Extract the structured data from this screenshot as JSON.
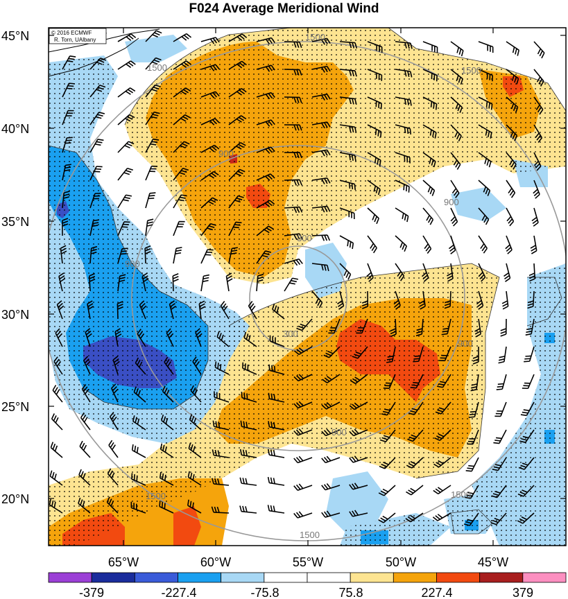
{
  "title": "F024 Average Meridional Wind",
  "credit": [
    "© 2016 ECMWF",
    "R. Torn, UAlbany"
  ],
  "axes": {
    "lat_labels": [
      "45°N",
      "40°N",
      "35°N",
      "30°N",
      "25°N",
      "20°N"
    ],
    "lon_labels": [
      "65°W",
      "60°W",
      "55°W",
      "50°W",
      "45°W"
    ]
  },
  "contour_labels": [
    "1500",
    "1500",
    "1500",
    "1500",
    "1500",
    "900",
    "900",
    "900",
    "900",
    "900",
    "300",
    "300",
    "1500"
  ],
  "colorbar": {
    "colors": [
      "#9b3fd6",
      "#1a2c9c",
      "#3a5bd9",
      "#1aa0f0",
      "#a8d8f5",
      "#ffffff",
      "#ffffff",
      "#fde491",
      "#f5a40c",
      "#f24a10",
      "#a81e1e",
      "#fc8fc0"
    ],
    "labels": [
      "-379",
      "-227.4",
      "-75.8",
      "75.8",
      "227.4",
      "379"
    ]
  },
  "colors": {
    "light_blue": "#a8d8f5",
    "blue": "#1aa0f0",
    "dark_blue": "#3a4fc4",
    "light_yellow": "#fde491",
    "orange": "#f5a40c",
    "red_orange": "#f24a10",
    "red": "#c8261a"
  }
}
